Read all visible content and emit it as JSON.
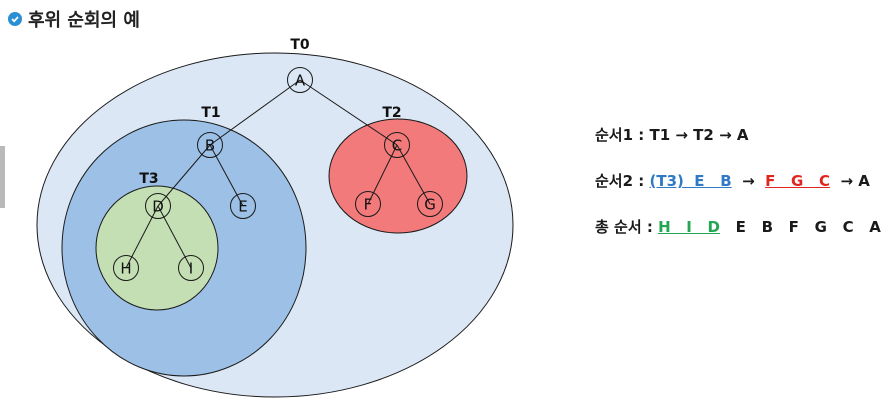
{
  "title": "후위 순회의 예",
  "colors": {
    "bullet": "#2b8fd6",
    "t0_fill": "#dbe7f5",
    "t1_fill": "#9dc0e6",
    "t2_fill": "#f27a7a",
    "t3_fill": "#c5dfb4",
    "blue_text": "#2f79c5",
    "red_text": "#e0251e",
    "green_text": "#22a652"
  },
  "subtrees": {
    "t0": "T0",
    "t1": "T1",
    "t2": "T2",
    "t3": "T3"
  },
  "nodes": {
    "a": "A",
    "b": "B",
    "c": "C",
    "d": "D",
    "e": "E",
    "f": "F",
    "g": "G",
    "h": "H",
    "i": "I"
  },
  "order1": {
    "label": "순서1 : ",
    "t1": "T1",
    "arrow1": " → ",
    "t2": "T2",
    "arrow2": " → ",
    "a": "A"
  },
  "order2": {
    "label": "순서2 : ",
    "t3": "(T3)  E   B",
    "arrow1": "  →  ",
    "fgc": "F   G   C",
    "arrow2": "  → ",
    "a": "A"
  },
  "order_total": {
    "label": "총 순서 : ",
    "hid": "H   I   D",
    "rest": "   E   B   F   G   C   A"
  }
}
